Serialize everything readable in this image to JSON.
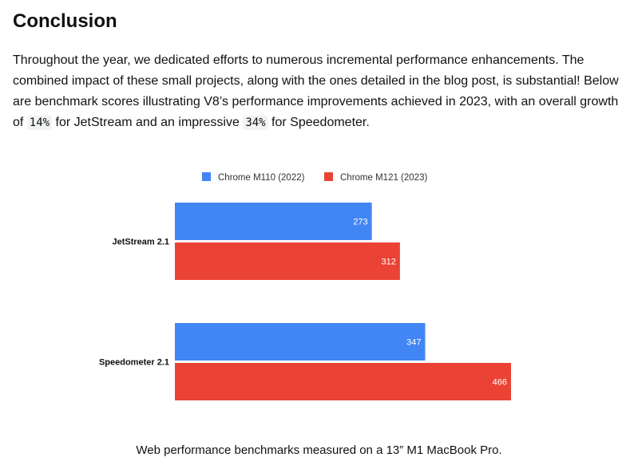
{
  "article": {
    "heading": "Conclusion",
    "intro_parts": [
      "Throughout the year, we dedicated efforts to numerous incremental performance enhancements. The combined impact of these small projects, along with the ones detailed in the blog post, is substantial! Below are benchmark scores illustrating V8’s performance improvements achieved in 2023, with an overall growth of ",
      "14%",
      " for JetStream and an impressive ",
      "34%",
      " for Speedometer."
    ],
    "caption": "Web performance benchmarks measured on a 13” M1 MacBook Pro."
  },
  "chart_data": {
    "type": "bar",
    "orientation": "horizontal",
    "categories": [
      "JetStream 2.1",
      "Speedometer 2.1"
    ],
    "series": [
      {
        "name": "Chrome M110 (2022)",
        "values": [
          273,
          347
        ],
        "color": "#4285f4"
      },
      {
        "name": "Chrome M121 (2023)",
        "values": [
          312,
          466
        ],
        "color": "#ea4335"
      }
    ],
    "xlim": [
      0,
      466
    ],
    "legend": "top",
    "grid": false,
    "data_labels": true,
    "label_color": "#ffffff"
  }
}
